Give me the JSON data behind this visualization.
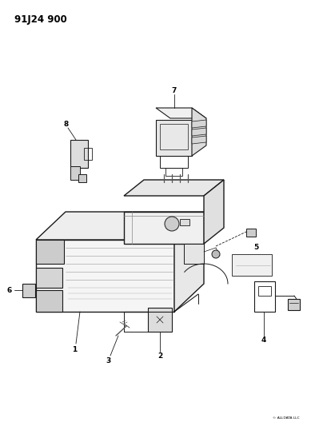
{
  "title": "91J24 900",
  "background_color": "#ffffff",
  "line_color": "#1a1a1a",
  "text_color": "#000000",
  "fig_width": 3.89,
  "fig_height": 5.33,
  "dpi": 100,
  "title_fontsize": 8.5,
  "label_fontsize": 6.0,
  "lw_main": 0.9,
  "lw_detail": 0.5
}
